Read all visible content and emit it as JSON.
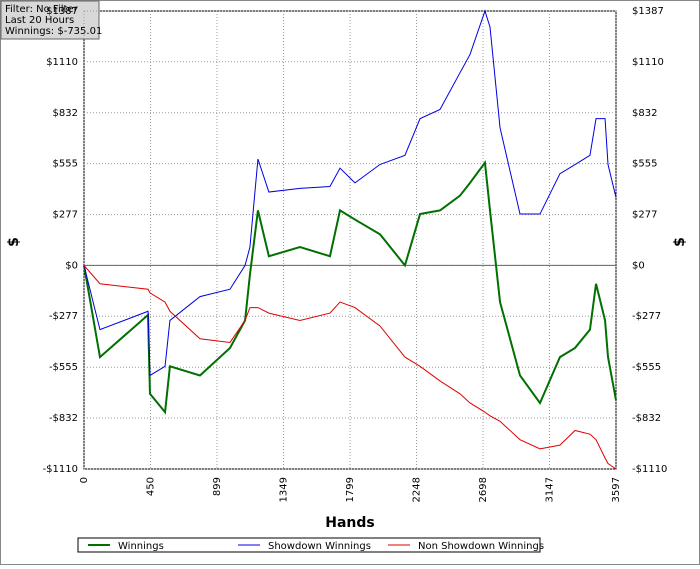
{
  "chart_data": {
    "type": "line",
    "info": [
      "Filter: No Filter",
      "Last  20 Hours",
      "Winnings: $-735.01"
    ],
    "xlabel": "Hands",
    "ylabel": "$",
    "x": [
      0,
      108,
      433,
      446,
      548,
      581,
      784,
      987,
      1089,
      1122,
      1176,
      1250,
      1460,
      1663,
      1731,
      1832,
      2001,
      2170,
      2272,
      2407,
      2542,
      2610,
      2711,
      2745,
      2813,
      2948,
      3083,
      3218,
      3320,
      3421,
      3462,
      3523,
      3543,
      3597
    ],
    "series": [
      {
        "name": "Winnings",
        "color": "#007000",
        "values": [
          0,
          -500,
          -270,
          -700,
          -800,
          -550,
          -600,
          -450,
          -300,
          -50,
          300,
          50,
          100,
          50,
          300,
          250,
          170,
          0,
          280,
          300,
          380,
          450,
          560,
          300,
          -200,
          -600,
          -750,
          -500,
          -450,
          -350,
          -100,
          -300,
          -500,
          -735
        ]
      },
      {
        "name": "Showdown Winnings",
        "color": "#0000e0",
        "values": [
          0,
          -350,
          -250,
          -600,
          -550,
          -300,
          -170,
          -130,
          0,
          100,
          580,
          400,
          420,
          430,
          530,
          450,
          550,
          600,
          800,
          850,
          1050,
          1150,
          1387,
          1300,
          750,
          280,
          280,
          500,
          550,
          600,
          800,
          800,
          550,
          370
        ]
      },
      {
        "name": "Non Showdown Winnings",
        "color": "#e00000",
        "values": [
          0,
          -100,
          -130,
          -150,
          -200,
          -250,
          -400,
          -420,
          -300,
          -230,
          -230,
          -260,
          -300,
          -260,
          -200,
          -230,
          -330,
          -500,
          -550,
          -630,
          -700,
          -750,
          -800,
          -820,
          -850,
          -950,
          -1000,
          -980,
          -900,
          -920,
          -950,
          -1050,
          -1080,
          -1110
        ]
      }
    ],
    "xlim": [
      0,
      3597
    ],
    "ylim": [
      -1110,
      1387
    ],
    "xticks": [
      0,
      450,
      899,
      1349,
      1799,
      2248,
      2698,
      3147,
      3597
    ],
    "yticks": [
      {
        "value": 1387,
        "label": "$1387"
      },
      {
        "value": 1110,
        "label": "$1110"
      },
      {
        "value": 832,
        "label": "$832"
      },
      {
        "value": 555,
        "label": "$555"
      },
      {
        "value": 277,
        "label": "$277"
      },
      {
        "value": 0,
        "label": "$0"
      },
      {
        "value": -277,
        "label": "-$277"
      },
      {
        "value": -555,
        "label": "-$555"
      },
      {
        "value": -832,
        "label": "-$832"
      },
      {
        "value": -1110,
        "label": "-$1110"
      }
    ],
    "grid": true
  }
}
